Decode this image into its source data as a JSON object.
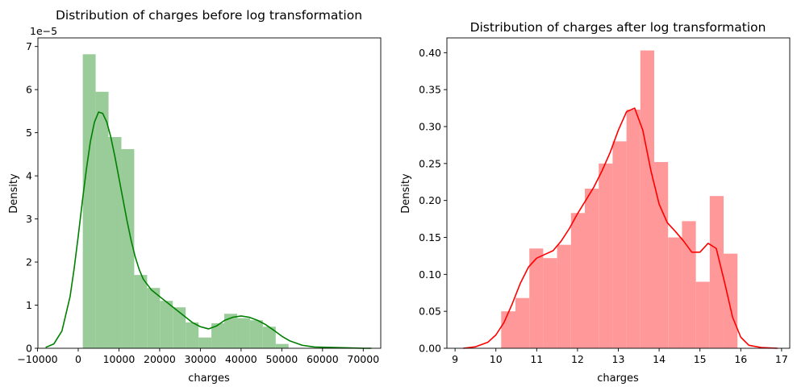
{
  "chart_data": [
    {
      "type": "bar",
      "title": "Distribution of charges before log transformation",
      "xlabel": "charges",
      "ylabel": "Density",
      "y_offset_text": "1e−5",
      "color": "#008000",
      "bar_color": "#99cc99",
      "xlim": [
        -9900,
        74300
      ],
      "ylim": [
        0,
        7.2
      ],
      "y_scale_note": "values in units of 1e-5",
      "xticks": [
        -10000,
        0,
        10000,
        20000,
        30000,
        40000,
        50000,
        60000,
        70000
      ],
      "xtick_labels": [
        "−10000",
        "0",
        "10000",
        "20000",
        "30000",
        "40000",
        "50000",
        "60000",
        "70000"
      ],
      "yticks": [
        0,
        1,
        2,
        3,
        4,
        5,
        6,
        7
      ],
      "ytick_labels": [
        "0",
        "1",
        "2",
        "3",
        "4",
        "5",
        "6",
        "7"
      ],
      "histogram": {
        "bin_edges": [
          1122,
          4281,
          7440,
          10599,
          13757,
          16916,
          20075,
          23234,
          26393,
          29552,
          32711,
          35870,
          39029,
          42188,
          45347,
          48506,
          51665
        ],
        "densities": [
          6.82,
          5.95,
          4.9,
          4.62,
          1.7,
          1.4,
          1.1,
          0.95,
          0.6,
          0.25,
          0.58,
          0.8,
          0.7,
          0.65,
          0.5,
          0.1
        ]
      },
      "kde": {
        "x": [
          -8000,
          -6000,
          -4000,
          -2000,
          -1000,
          0,
          1000,
          2000,
          3000,
          4000,
          5000,
          6000,
          7000,
          8000,
          9000,
          10000,
          11000,
          12000,
          13000,
          14000,
          15000,
          16000,
          18000,
          20000,
          22000,
          24000,
          26000,
          28000,
          30000,
          32000,
          34000,
          36000,
          38000,
          40000,
          42000,
          44000,
          46000,
          48000,
          50000,
          52000,
          55000,
          58000,
          62000,
          66000,
          70000,
          72000
        ],
        "y": [
          0.02,
          0.1,
          0.4,
          1.2,
          1.85,
          2.6,
          3.4,
          4.15,
          4.8,
          5.25,
          5.48,
          5.45,
          5.25,
          4.9,
          4.45,
          3.95,
          3.45,
          2.95,
          2.5,
          2.12,
          1.82,
          1.6,
          1.35,
          1.2,
          1.05,
          0.9,
          0.75,
          0.6,
          0.5,
          0.45,
          0.52,
          0.65,
          0.72,
          0.75,
          0.72,
          0.65,
          0.55,
          0.42,
          0.28,
          0.17,
          0.07,
          0.03,
          0.02,
          0.01,
          0.0,
          0.0
        ]
      }
    },
    {
      "type": "bar",
      "title": "Distribution of charges after log transformation",
      "xlabel": "charges",
      "ylabel": "Density",
      "color": "#ff0000",
      "bar_color": "#ff9999",
      "xlim": [
        8.8,
        17.2
      ],
      "ylim": [
        0,
        0.42
      ],
      "xticks": [
        9,
        10,
        11,
        12,
        13,
        14,
        15,
        16,
        17
      ],
      "xtick_labels": [
        "9",
        "10",
        "11",
        "12",
        "13",
        "14",
        "15",
        "16",
        "17"
      ],
      "yticks": [
        0,
        0.05,
        0.1,
        0.15,
        0.2,
        0.25,
        0.3,
        0.35,
        0.4
      ],
      "ytick_labels": [
        "0.00",
        "0.05",
        "0.10",
        "0.15",
        "0.20",
        "0.25",
        "0.30",
        "0.35",
        "0.40"
      ],
      "histogram": {
        "bin_edges": [
          10.13,
          10.48,
          10.82,
          11.16,
          11.5,
          11.84,
          12.18,
          12.52,
          12.86,
          13.2,
          13.54,
          13.88,
          14.22,
          14.56,
          14.9,
          15.24,
          15.58,
          15.92
        ],
        "densities": [
          0.05,
          0.068,
          0.135,
          0.122,
          0.14,
          0.183,
          0.216,
          0.25,
          0.28,
          0.323,
          0.403,
          0.252,
          0.15,
          0.172,
          0.09,
          0.206,
          0.128
        ]
      },
      "kde": {
        "x": [
          9.2,
          9.5,
          9.8,
          10.0,
          10.2,
          10.4,
          10.6,
          10.8,
          11.0,
          11.2,
          11.4,
          11.6,
          11.8,
          12.0,
          12.2,
          12.4,
          12.6,
          12.8,
          13.0,
          13.2,
          13.4,
          13.6,
          13.8,
          14.0,
          14.2,
          14.4,
          14.6,
          14.8,
          15.0,
          15.2,
          15.4,
          15.6,
          15.8,
          16.0,
          16.2,
          16.5,
          16.9
        ],
        "y": [
          0.0,
          0.002,
          0.008,
          0.018,
          0.035,
          0.06,
          0.088,
          0.11,
          0.122,
          0.127,
          0.132,
          0.145,
          0.162,
          0.182,
          0.2,
          0.218,
          0.24,
          0.265,
          0.295,
          0.32,
          0.325,
          0.295,
          0.24,
          0.195,
          0.17,
          0.158,
          0.145,
          0.13,
          0.13,
          0.142,
          0.135,
          0.09,
          0.042,
          0.015,
          0.004,
          0.001,
          0.0
        ]
      }
    }
  ]
}
